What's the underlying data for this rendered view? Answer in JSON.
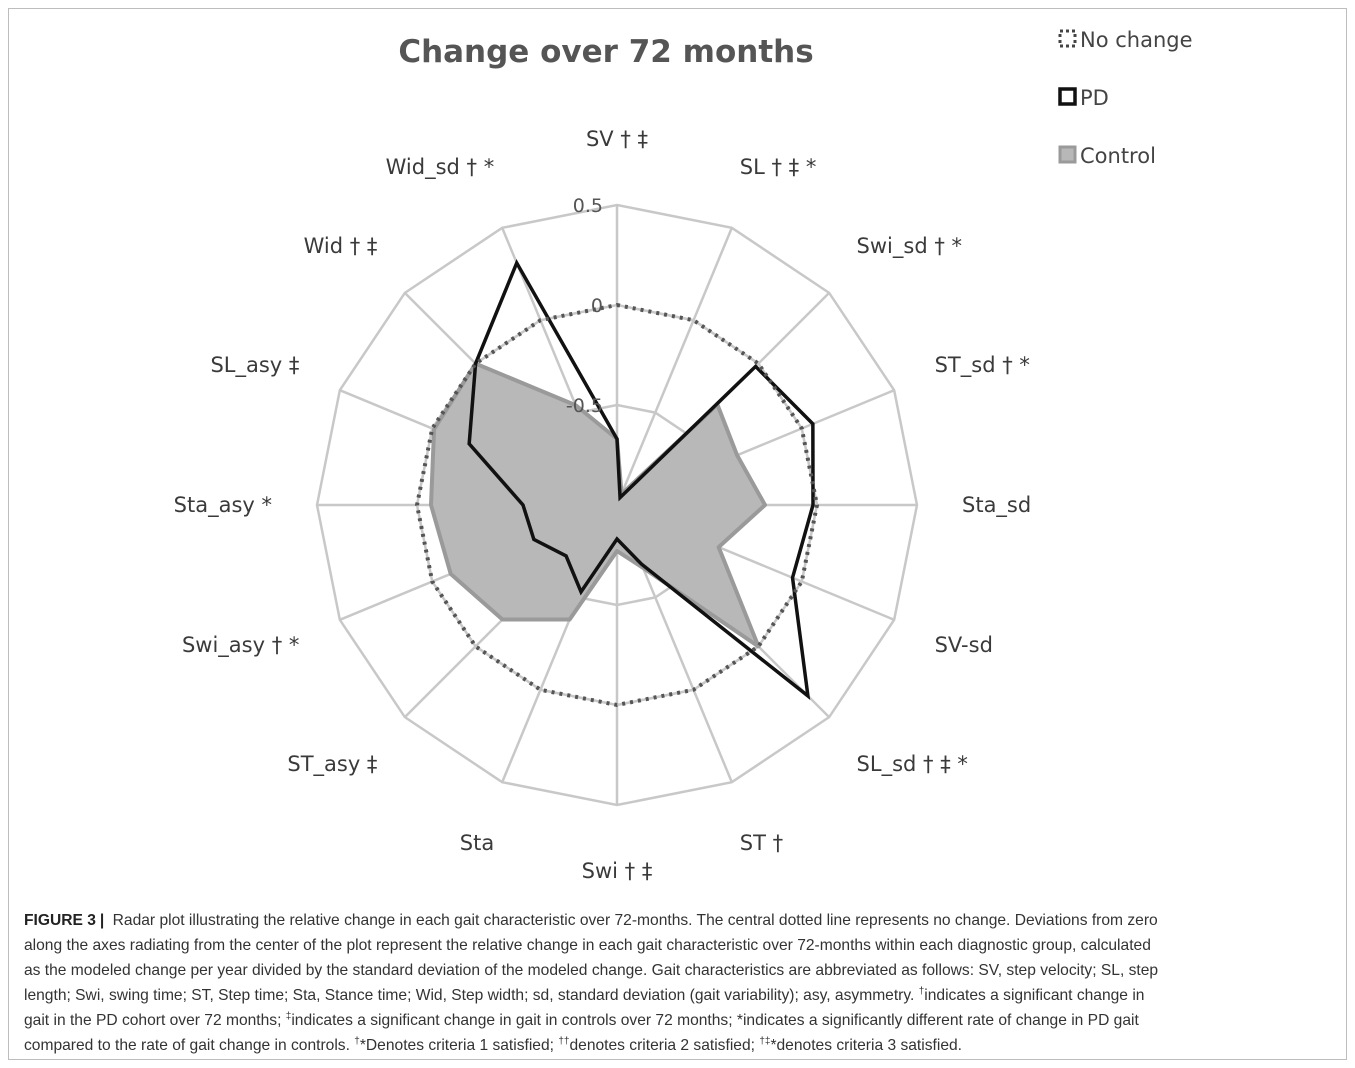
{
  "chart_data": {
    "type": "radar",
    "title": "Change over 72 months",
    "axes": [
      "SV † ‡",
      "SL † ‡ *",
      "Swi_sd † *",
      "ST_sd † *",
      "Sta_sd",
      "SV-sd",
      "SL_sd † ‡ *",
      "ST †",
      "Swi † ‡",
      "Sta",
      "ST_asy ‡",
      "Swi_asy † *",
      "Sta_asy *",
      "SL_asy ‡",
      "Wid † ‡",
      "Wid_sd † *"
    ],
    "ticks": [
      {
        "value": -0.5,
        "label": "-0.5"
      },
      {
        "value": 0,
        "label": "0"
      },
      {
        "value": 0.5,
        "label": "0.5"
      }
    ],
    "rlim": [
      -1,
      0.5
    ],
    "grid": true,
    "legend_position": "top-right",
    "series": [
      {
        "name": "No change",
        "style": "dotted",
        "color": "#555555",
        "values": [
          0,
          0,
          0,
          0,
          0,
          0,
          0,
          0,
          0,
          0,
          0,
          0,
          0,
          0,
          0,
          0
        ]
      },
      {
        "name": "PD",
        "style": "line",
        "color": "#111111",
        "values": [
          -0.67,
          -0.96,
          -0.02,
          0.06,
          -0.02,
          -0.05,
          0.35,
          -0.68,
          -0.83,
          -0.53,
          -0.64,
          -0.55,
          -0.53,
          -0.2,
          0.0,
          0.31
        ]
      },
      {
        "name": "Control",
        "style": "area",
        "color": "#9a9a9a",
        "fill": "#b8b8b8",
        "values": [
          -0.67,
          -0.94,
          -0.29,
          -0.35,
          -0.26,
          -0.45,
          0.0,
          -0.66,
          -0.77,
          -0.38,
          -0.19,
          -0.1,
          -0.07,
          -0.01,
          0.0,
          -0.46
        ]
      }
    ]
  },
  "caption": {
    "label": "FIGURE 3",
    "separator": "|",
    "line1": "Radar plot illustrating the relative change in each gait characteristic over 72-months. The central dotted line represents no change. Deviations from zero",
    "line2": "along the axes radiating from the center of the plot represent the relative change in each gait characteristic over 72-months within each diagnostic group, calculated",
    "line3": "as the modeled change per year divided by the standard deviation of the modeled change. Gait characteristics are abbreviated as follows: SV, step velocity; SL, step",
    "line4": "length; Swi, swing time; ST, Step time; Sta, Stance time; Wid, Step width; sd, standard deviation (gait variability); asy, asymmetry.",
    "line4_sup": "†",
    "line4_end": "indicates a significant change in",
    "line5_a": "gait in the PD cohort over 72 months;",
    "line5_sup1": "‡",
    "line5_b": "indicates a significant change in gait in controls over 72 months; *indicates a significantly different rate of change in PD gait",
    "line6_a": "compared to the rate of gait change in controls.",
    "line6_sup1": "†",
    "line6_b": "*Denotes criteria 1 satisfied;",
    "line6_sup2": "††",
    "line6_c": "denotes criteria 2 satisfied;",
    "line6_sup3": "†‡",
    "line6_d": "*denotes criteria 3 satisfied."
  }
}
